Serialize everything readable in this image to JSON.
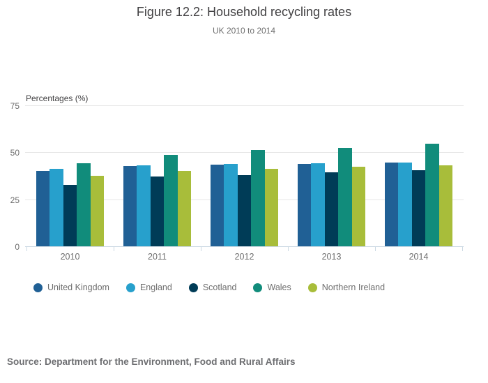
{
  "header": {
    "title": "Figure 12.2: Household recycling rates",
    "subtitle": "UK 2010 to 2014"
  },
  "chart_data": {
    "type": "bar",
    "title": "Figure 12.2: Household recycling rates",
    "subtitle": "UK 2010 to 2014",
    "xlabel": "",
    "ylabel": "Percentages (%)",
    "ylim": [
      0,
      75
    ],
    "yticks": [
      0,
      25,
      50,
      75
    ],
    "grid": true,
    "legend_position": "bottom",
    "categories": [
      "2010",
      "2011",
      "2012",
      "2013",
      "2014"
    ],
    "series": [
      {
        "name": "United Kingdom",
        "color": "#206095",
        "values": [
          40.2,
          42.7,
          43.4,
          43.9,
          44.3
        ]
      },
      {
        "name": "England",
        "color": "#27a0cc",
        "values": [
          41.0,
          43.0,
          43.9,
          44.0,
          44.4
        ]
      },
      {
        "name": "Scotland",
        "color": "#003c57",
        "values": [
          32.6,
          37.0,
          37.8,
          39.3,
          40.4
        ]
      },
      {
        "name": "Wales",
        "color": "#118c7b",
        "values": [
          44.0,
          48.4,
          51.3,
          52.3,
          54.4
        ]
      },
      {
        "name": "Northern Ireland",
        "color": "#a8bd3a",
        "values": [
          37.6,
          40.2,
          41.2,
          42.4,
          43.0
        ]
      }
    ]
  },
  "colors": {
    "title_text": "#414042",
    "axis_text": "#6e6e6e",
    "gridline": "#e6e6e6",
    "axis_line": "#ccd9e3",
    "source_text": "#6d6e71"
  },
  "source": {
    "text": "Source: Department for the Environment, Food and Rural Affairs"
  }
}
